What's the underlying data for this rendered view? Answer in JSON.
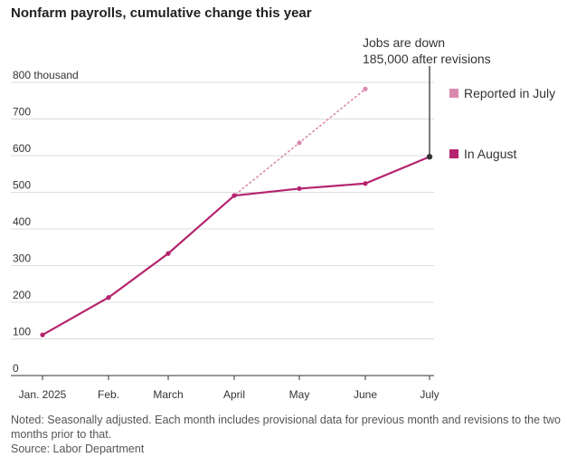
{
  "title": "Nonfarm payrolls, cumulative change this year",
  "chart_data": {
    "type": "line",
    "title": "Nonfarm payrolls, cumulative change this year",
    "categories": [
      "Jan. 2025",
      "Feb.",
      "March",
      "April",
      "May",
      "June",
      "July"
    ],
    "y_tick_labels": [
      "0",
      "100",
      "200",
      "300",
      "400",
      "500",
      "600",
      "700",
      "800 thousand"
    ],
    "ylim": [
      0,
      800
    ],
    "grid": true,
    "legend_position": "right",
    "series": [
      {
        "name": "Reported in July",
        "values": [
          111,
          213,
          333,
          491,
          635,
          782,
          null
        ],
        "color": "#d98aae",
        "style": "dotted"
      },
      {
        "name": "In August",
        "values": [
          111,
          213,
          333,
          491,
          510,
          524,
          597
        ],
        "color": "#b5246e",
        "style": "solid"
      }
    ],
    "annotation": {
      "lines": [
        "Jobs are down",
        "185,000 after revisions"
      ]
    }
  },
  "note": "Noted: Seasonally adjusted. Each month includes provisional data for previous month and revisions to the two months prior to that.",
  "source": "Source: Labor Department"
}
